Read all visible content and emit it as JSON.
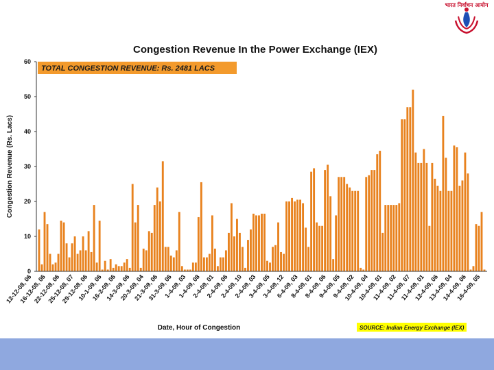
{
  "logo": {
    "text": "भारत निर्वाचन आयोग",
    "primary_color": "#c8102e",
    "secondary_color": "#1d4fb5",
    "icon": "emblem-icon"
  },
  "colors": {
    "bar": "#e8821e",
    "bar_edge": "#c9660a",
    "total_box": "#f39a2c",
    "source_box": "#ffff00",
    "footer": "#8fa8df"
  },
  "chart_data": {
    "type": "bar",
    "title": "Congestion Revenue In the Power Exchange (IEX)",
    "xlabel": "Date, Hour of Congestion",
    "ylabel": "Congestion Revenue (Rs. Lacs)",
    "ylim": [
      0,
      60
    ],
    "yticks": [
      0,
      10,
      20,
      30,
      40,
      50,
      60
    ],
    "grid": false,
    "annotation_total": "TOTAL CONGESTION REVENUE: Rs. 2481 LACS",
    "annotation_source": "SOURCE: Indian Energy Exchange (IEX)",
    "xtick_labels": [
      "12-12-08, 06",
      "16-12-08, 06",
      "22-12-08, 06",
      "25-12-08, 07",
      "29-12-08, 06",
      "10-1-09, 06",
      "16-2-09, 06",
      "14-3-09, 06",
      "20-3-09, 04",
      "21-3-09, 06",
      "31-3-09, 06",
      "1-4-09, 03",
      "1-4-09, 08",
      "2-4-09, 01",
      "2-4-09, 06",
      "2-4-09, 10",
      "2-4-09, 03",
      "3-4-09, 05",
      "3-4-09, 12",
      "6-4-09, 03",
      "8-4-09, 01",
      "8-4-09, 06",
      "9-4-09, 05",
      "9-4-09, 02",
      "10-4-09, 04",
      "10-4-09, 01",
      "11-4-09, 02",
      "11-4-09, 07",
      "11-4-09, 01",
      "12-4-09, 06",
      "13-4-09, 04",
      "14-4-09, 06",
      "16-4-09, 05"
    ],
    "values": [
      12,
      2,
      17,
      13.5,
      5,
      2,
      2.5,
      5,
      14.5,
      14,
      8,
      4,
      8,
      10,
      5,
      6,
      10,
      6,
      11.5,
      5.5,
      19,
      2.5,
      14.5,
      0.5,
      3,
      0.5,
      3.5,
      1,
      2,
      1.5,
      1.5,
      2.5,
      3.5,
      1,
      25,
      14,
      19,
      1,
      6.5,
      6,
      11.5,
      11,
      19,
      24,
      20,
      31.5,
      7,
      7,
      4.5,
      4,
      6,
      17,
      1.5,
      0.5,
      0.5,
      0.5,
      2.5,
      2.5,
      15.5,
      25.5,
      4,
      4,
      5,
      16,
      6.5,
      1.5,
      4,
      4,
      6,
      11,
      19.5,
      10,
      15,
      11,
      7,
      1,
      9,
      12,
      16.5,
      16,
      16,
      16.5,
      16.5,
      3,
      2.5,
      7,
      7.5,
      14,
      5.5,
      5,
      20,
      20,
      21,
      20,
      20.5,
      20.5,
      19.5,
      12.5,
      7,
      28.5,
      29.5,
      14,
      13,
      13,
      29,
      30.5,
      21.5,
      3.5,
      16,
      27,
      27,
      27,
      25,
      24,
      23,
      23,
      23,
      1,
      0.5,
      27,
      27.5,
      29,
      29,
      33.5,
      34.5,
      11,
      19,
      19,
      19,
      19,
      19,
      19.5,
      43.5,
      43.5,
      47,
      47,
      52,
      34,
      31,
      31,
      35,
      31,
      13,
      31,
      26.5,
      24.5,
      23,
      44.5,
      32.5,
      23,
      23,
      36,
      35.5,
      24.5,
      26,
      34,
      28,
      0.5,
      1.5,
      13.5,
      13,
      17,
      0.5
    ]
  }
}
